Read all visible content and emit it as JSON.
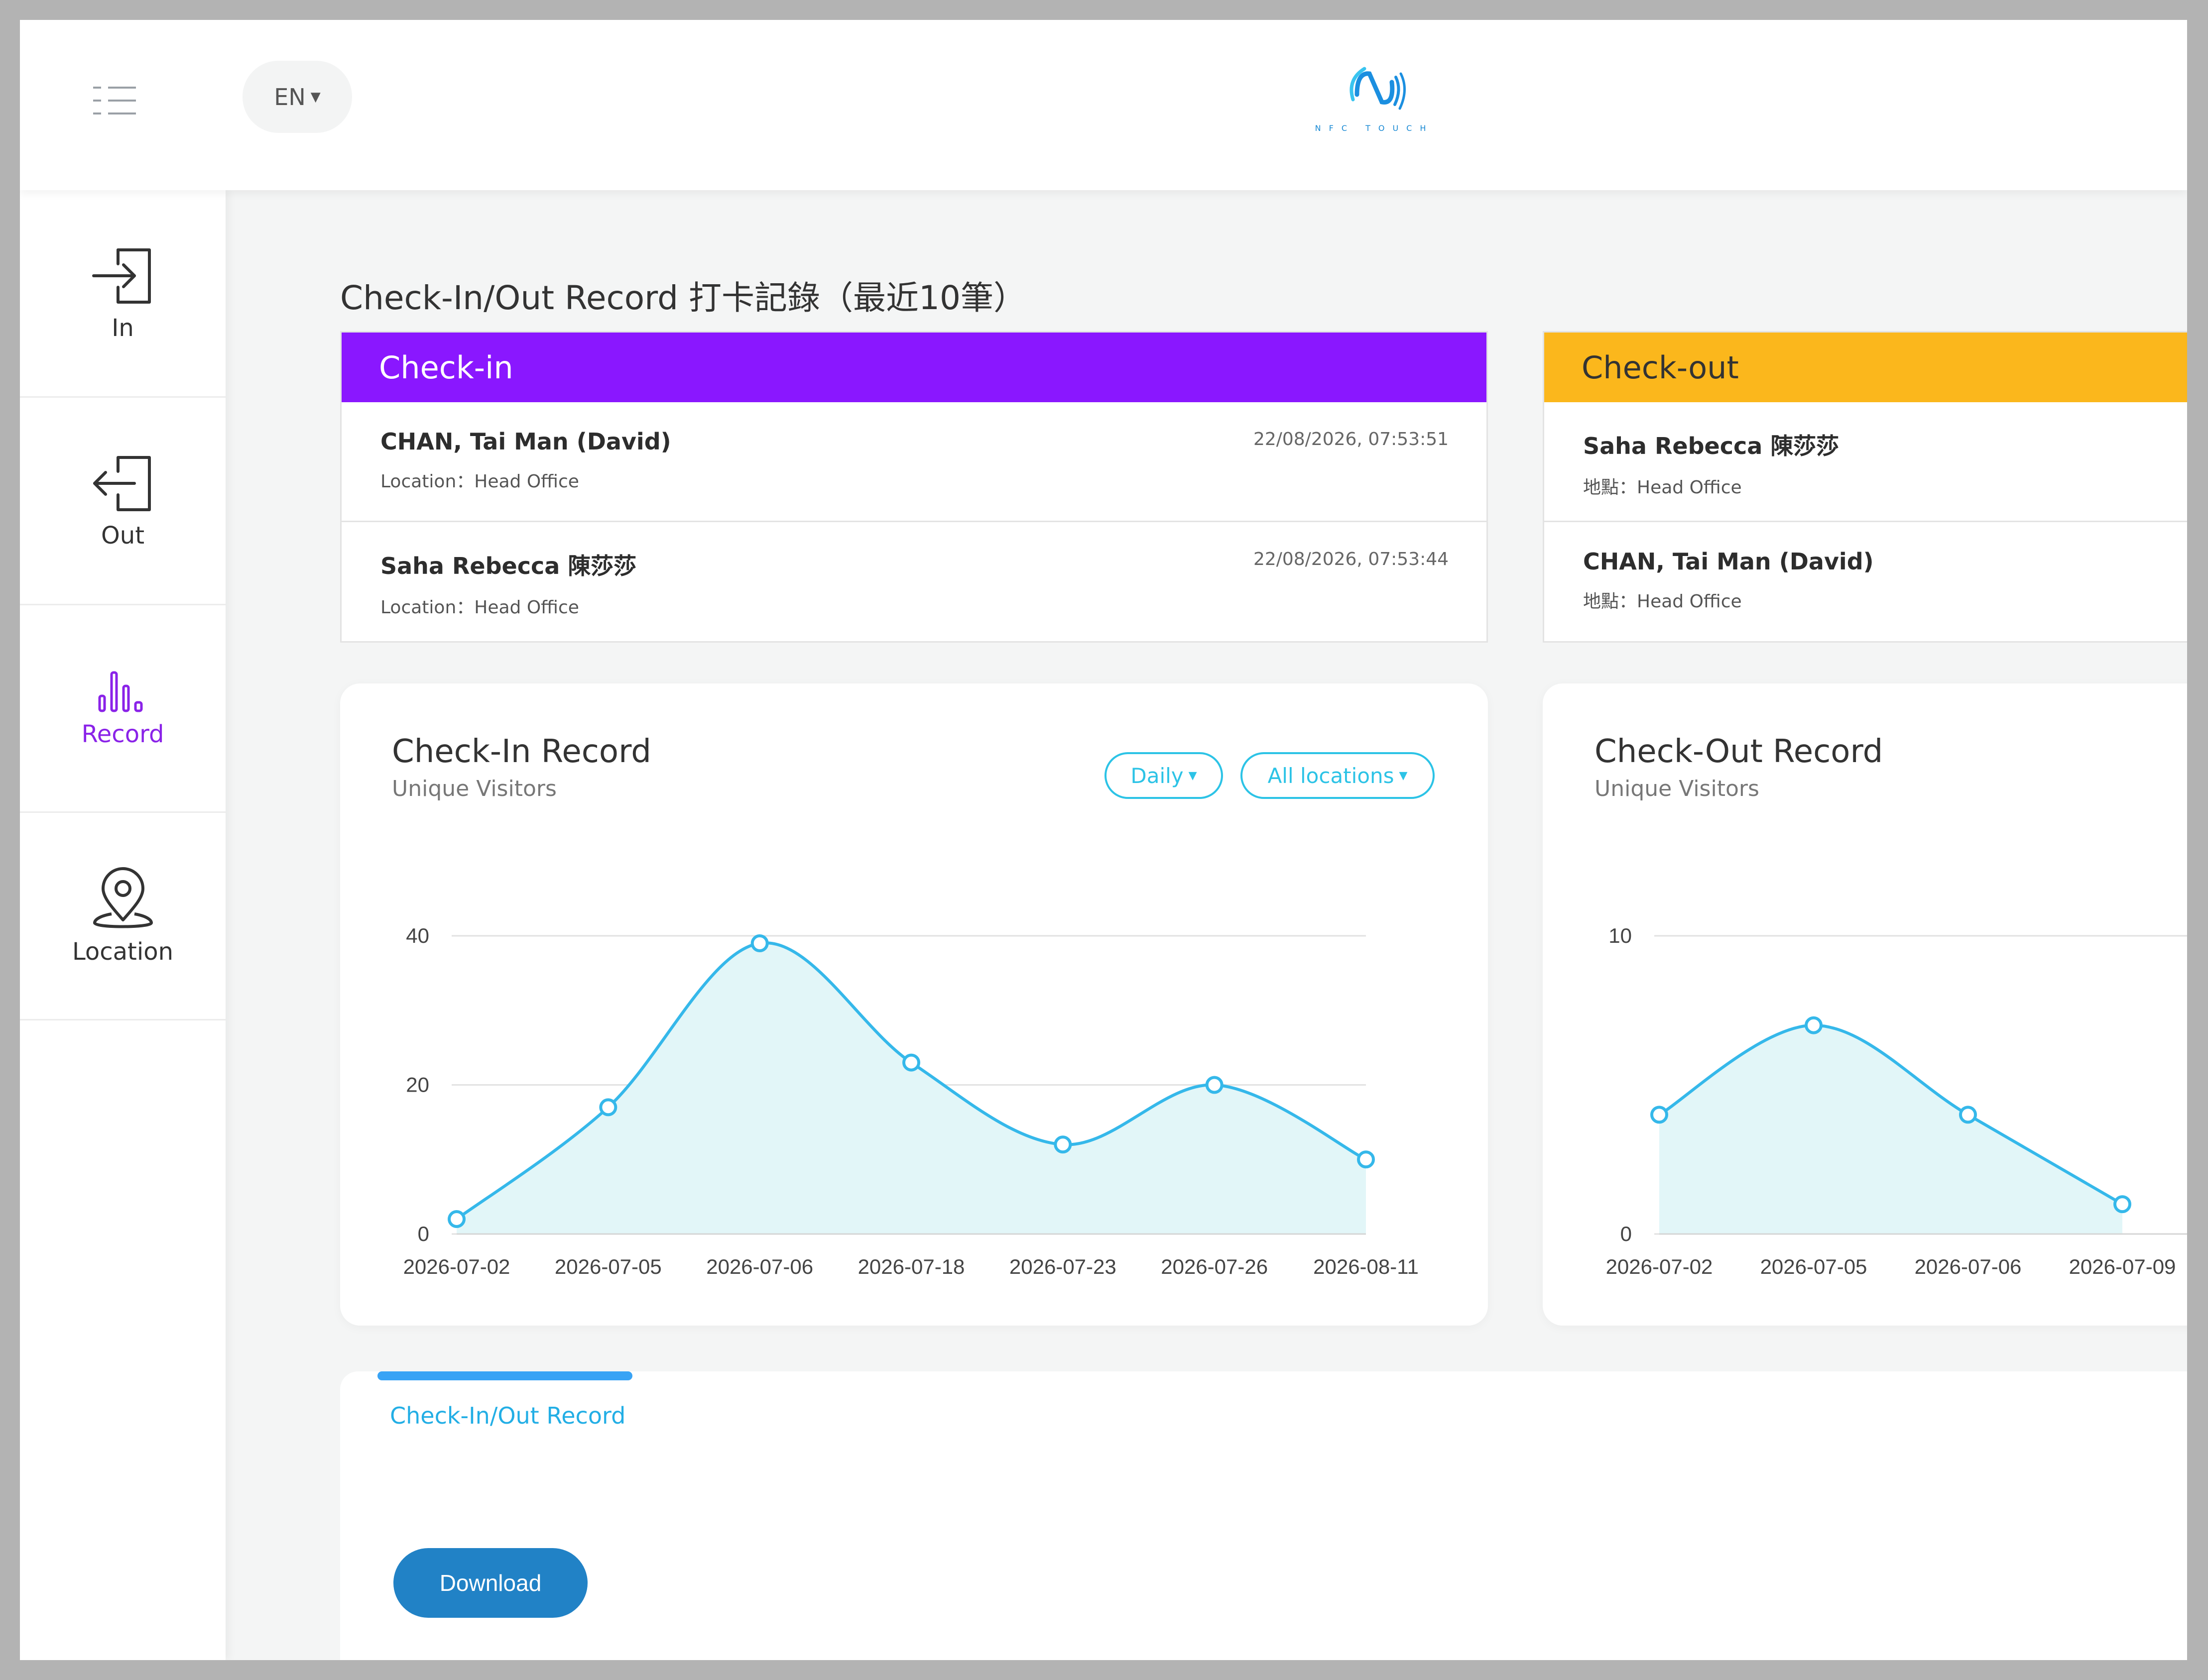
{
  "header": {
    "menu_icon": "list-menu-icon",
    "language": "EN",
    "logo_text": "NFC TOUCH"
  },
  "sidebar": {
    "items": [
      {
        "label": "In",
        "icon": "sign-in-icon"
      },
      {
        "label": "Out",
        "icon": "sign-out-icon"
      },
      {
        "label": "Record",
        "icon": "bar-chart-icon",
        "active": true
      },
      {
        "label": "Location",
        "icon": "location-pin-icon"
      }
    ]
  },
  "page_title": "Check-In/Out Record 打卡記錄（最近10筆）",
  "checkin_panel": {
    "title": "Check-in",
    "color": "#8a17ff",
    "records": [
      {
        "name": "CHAN, Tai Man (David)",
        "location": "Location：Head Office",
        "time": "22/08/2026, 07:53:51"
      },
      {
        "name": "Saha Rebecca 陳莎莎",
        "location": "Location：Head Office",
        "time": "22/08/2026, 07:53:44"
      }
    ]
  },
  "checkout_panel": {
    "title": "Check-out",
    "color": "#fbb71c",
    "records": [
      {
        "name": "Saha Rebecca 陳莎莎",
        "location": "地點：Head Office"
      },
      {
        "name": "CHAN, Tai Man (David)",
        "location": "地點：Head Office"
      }
    ]
  },
  "checkin_card": {
    "title": "Check-In Record",
    "subtitle": "Unique Visitors",
    "filter_period": "Daily",
    "filter_location": "All locations"
  },
  "checkout_card": {
    "title": "Check-Out Record",
    "subtitle": "Unique Visitors"
  },
  "chart_data": [
    {
      "type": "area",
      "title": "Check-In Record",
      "subtitle": "Unique Visitors",
      "categories": [
        "2026-07-02",
        "2026-07-05",
        "2026-07-06",
        "2026-07-18",
        "2026-07-23",
        "2026-07-26",
        "2026-08-11"
      ],
      "values": [
        2,
        17,
        39,
        23,
        12,
        20,
        10
      ],
      "yticks": [
        0,
        20,
        40
      ],
      "ylim": [
        0,
        40
      ],
      "grid": true,
      "color": "#35b8ea"
    },
    {
      "type": "area",
      "title": "Check-Out Record",
      "subtitle": "Unique Visitors",
      "categories": [
        "2026-07-02",
        "2026-07-05",
        "2026-07-06",
        "2026-07-09"
      ],
      "values": [
        4,
        7,
        4,
        1
      ],
      "yticks": [
        0,
        10
      ],
      "ylim": [
        0,
        10
      ],
      "grid": true,
      "color": "#35b8ea"
    }
  ],
  "records_section": {
    "tab_label": "Check-In/Out Record",
    "download_label": "Download"
  }
}
